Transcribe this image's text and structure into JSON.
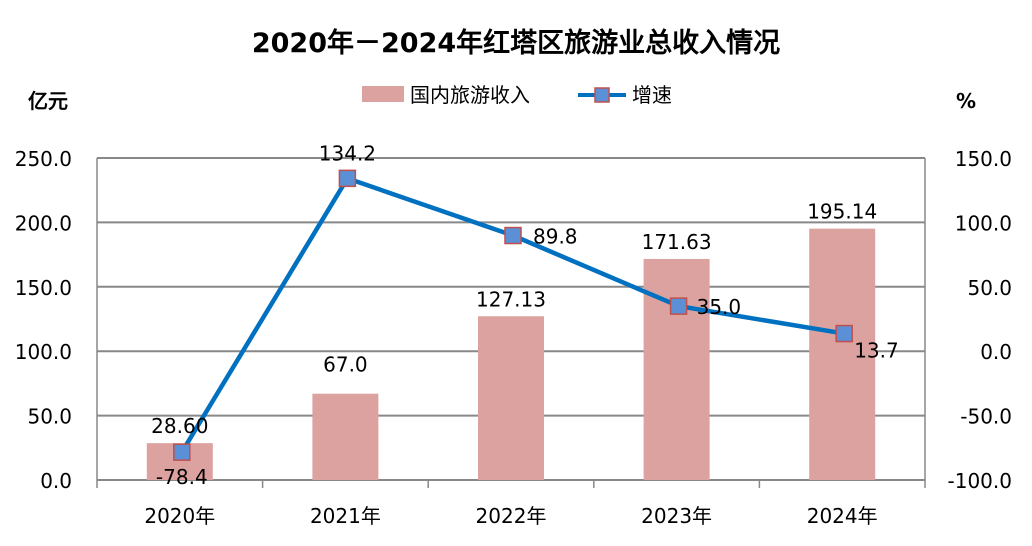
{
  "chart_data": {
    "type": "bar+line",
    "title": "2020年－2024年红塔区旅游业总收入情况",
    "categories": [
      "2020年",
      "2021年",
      "2022年",
      "2023年",
      "2024年"
    ],
    "y_left": {
      "label": "亿元",
      "range": [
        0,
        250
      ],
      "ticks": [
        "0.0",
        "50.0",
        "100.0",
        "150.0",
        "200.0",
        "250.0"
      ]
    },
    "y_right": {
      "label": "%",
      "range": [
        -100,
        150
      ],
      "ticks": [
        "-100.0",
        "-50.0",
        "0.0",
        "50.0",
        "100.0",
        "150.0"
      ]
    },
    "grid": true,
    "legend_position": "top",
    "series": [
      {
        "name": "国内旅游收入",
        "type": "bar",
        "axis": "left",
        "color": "#dca29f",
        "values": [
          28.6,
          67.0,
          127.13,
          171.63,
          195.14
        ],
        "labels": [
          "28.60",
          "67.0",
          "127.13",
          "171.63",
          "195.14"
        ]
      },
      {
        "name": "增速",
        "type": "line",
        "axis": "right",
        "color": "#0070c0",
        "marker_fill": "#5b8fd6",
        "marker_stroke": "#c0504d",
        "values": [
          -78.4,
          134.2,
          89.8,
          35.0,
          13.7
        ],
        "labels": [
          "-78.4",
          "134.2",
          "89.8",
          "35.0",
          "13.7"
        ]
      }
    ]
  }
}
